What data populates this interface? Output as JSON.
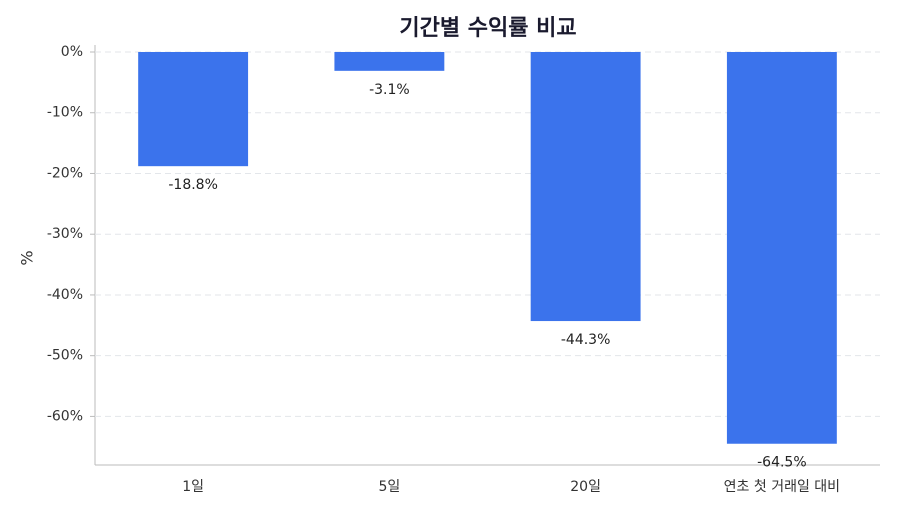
{
  "chart_data": {
    "type": "bar",
    "title": "기간별 수익률 비교",
    "y_label": "%",
    "categories": [
      "1일",
      "5일",
      "20일",
      "연초 첫 거래일 대비"
    ],
    "values": [
      -18.8,
      -3.1,
      -44.3,
      -64.5
    ],
    "value_labels": [
      "-18.8%",
      "-3.1%",
      "-44.3%",
      "-64.5%"
    ],
    "color": "#3b73ec",
    "ylim": [
      -68,
      0
    ],
    "yticks": [
      {
        "value": 0,
        "label": "0%"
      },
      {
        "value": -10,
        "label": "-10%"
      },
      {
        "value": -20,
        "label": "-20%"
      },
      {
        "value": -30,
        "label": "-30%"
      },
      {
        "value": -40,
        "label": "-40%"
      },
      {
        "value": -50,
        "label": "-50%"
      },
      {
        "value": -60,
        "label": "-60%"
      }
    ],
    "grid": true
  }
}
